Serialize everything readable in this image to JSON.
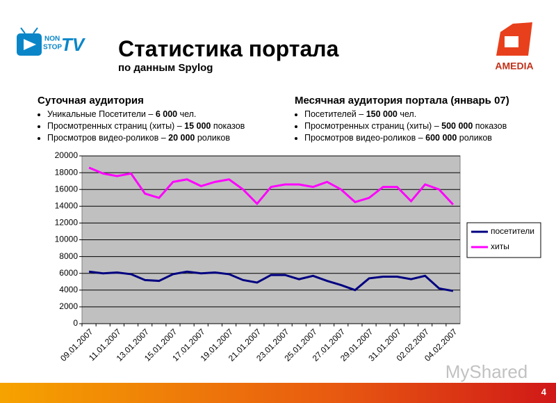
{
  "header": {
    "title": "Статистика портала",
    "subtitle": "по данным Spylog",
    "logo_left": [
      "NON",
      "STOP",
      "TV"
    ],
    "logo_right": "AMEDIA"
  },
  "daily": {
    "heading": "Суточная аудитория",
    "items": [
      {
        "pre": "Уникальные Посетители – ",
        "bold": "6 000",
        "post": " чел."
      },
      {
        "pre": "Просмотренных страниц (хиты) – ",
        "bold": "15 000",
        "post": " показов"
      },
      {
        "pre": "Просмотров видео-роликов – ",
        "bold": "20 000",
        "post": " роликов"
      }
    ]
  },
  "monthly": {
    "heading": "Месячная аудитория портала (январь 07)",
    "items": [
      {
        "pre": "Посетителей – ",
        "bold": "150 000",
        "post": " чел."
      },
      {
        "pre": "Просмотренных страниц (хиты) – ",
        "bold": "500 000",
        "post": " показов"
      },
      {
        "pre": "Просмотров видео-роликов – ",
        "bold": "600 000",
        "post": " роликов"
      }
    ]
  },
  "chart_data": {
    "type": "line",
    "categories": [
      "09.01.2007",
      null,
      "11.01.2007",
      null,
      "13.01.2007",
      null,
      "15.01.2007",
      null,
      "17.01.2007",
      null,
      "19.01.2007",
      null,
      "21.01.2007",
      null,
      "23.01.2007",
      null,
      "25.01.2007",
      null,
      "27.01.2007",
      null,
      "29.01.2007",
      null,
      "31.01.2007",
      null,
      "02.02.2007",
      null,
      "04.02.2007"
    ],
    "series": [
      {
        "name": "посетители",
        "color": "#000080",
        "values": [
          6200,
          6000,
          6100,
          5900,
          5200,
          5100,
          5900,
          6200,
          6000,
          6100,
          5900,
          5200,
          4900,
          5800,
          5800,
          5300,
          5700,
          5100,
          4600,
          4000,
          5400,
          5600,
          5600,
          5300,
          5700,
          4200,
          3900
        ]
      },
      {
        "name": "хиты",
        "color": "#ff00ff",
        "values": [
          18600,
          17900,
          17600,
          17900,
          15500,
          15000,
          16900,
          17200,
          16400,
          16900,
          17200,
          16000,
          14300,
          16300,
          16600,
          16600,
          16300,
          16900,
          16000,
          14500,
          15000,
          16300,
          16300,
          14600,
          16600,
          16000,
          14200
        ]
      }
    ],
    "ylim": [
      0,
      20000
    ],
    "yticks": [
      0,
      2000,
      4000,
      6000,
      8000,
      10000,
      12000,
      14000,
      16000,
      18000,
      20000
    ],
    "grid": true,
    "legend": "right"
  },
  "footer": {
    "page": "4",
    "watermark": "MyShared"
  }
}
